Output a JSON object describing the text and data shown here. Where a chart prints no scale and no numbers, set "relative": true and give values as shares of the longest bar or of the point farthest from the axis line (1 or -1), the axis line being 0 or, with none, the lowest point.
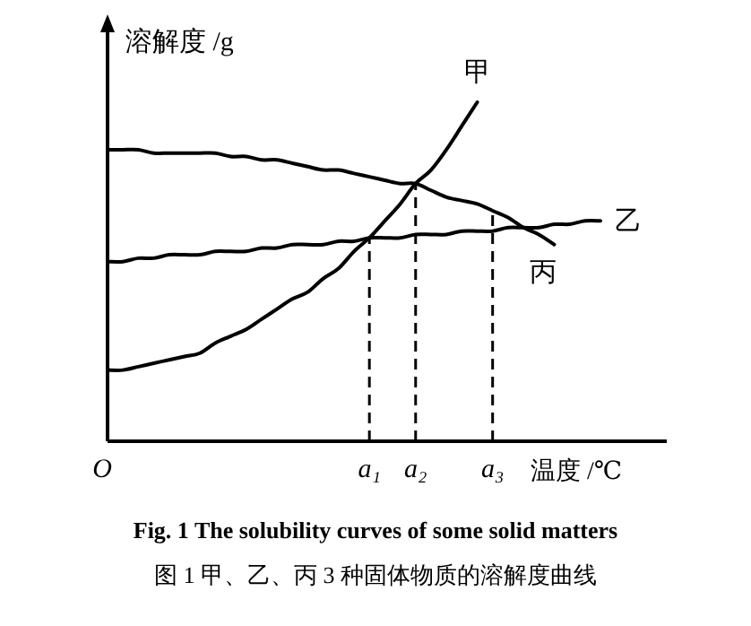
{
  "chart_data": {
    "type": "line",
    "relative": true,
    "title": "Fig. 1   The solubility curves of some solid matters",
    "subtitle": "图 1   甲、乙、丙 3 种固体物质的溶解度曲线",
    "xlabel": "温度 /℃",
    "ylabel": "溶解度 /g",
    "marker": "none",
    "line_style": "solid",
    "categories": [
      "O",
      null,
      null,
      null,
      null,
      null,
      null,
      null,
      null,
      null,
      null,
      null,
      null,
      null,
      null,
      null,
      null,
      "a₁",
      null,
      null,
      "a₂",
      null,
      null,
      null,
      null,
      "a₃",
      null,
      null,
      null,
      null,
      null,
      null,
      null
    ],
    "series": [
      {
        "name": "甲",
        "color": "#000000",
        "values": [
          0.21,
          0.21,
          0.22,
          0.23,
          0.24,
          0.25,
          0.26,
          0.29,
          0.31,
          0.33,
          0.36,
          0.39,
          0.42,
          0.44,
          0.48,
          0.51,
          0.56,
          0.6,
          0.65,
          0.7,
          0.76,
          0.8,
          0.86,
          0.93,
          1.0,
          null,
          null,
          null,
          null,
          null,
          null,
          null,
          null
        ]
      },
      {
        "name": "乙",
        "color": "#000000",
        "values": [
          0.53,
          0.53,
          0.54,
          0.54,
          0.55,
          0.55,
          0.55,
          0.56,
          0.56,
          0.56,
          0.57,
          0.57,
          0.58,
          0.58,
          0.58,
          0.59,
          0.59,
          0.6,
          0.6,
          0.6,
          0.61,
          0.61,
          0.61,
          0.62,
          0.62,
          0.62,
          0.63,
          0.63,
          0.63,
          0.64,
          0.64,
          0.65,
          0.65
        ]
      },
      {
        "name": "丙",
        "color": "#000000",
        "values": [
          0.86,
          0.86,
          0.86,
          0.85,
          0.85,
          0.85,
          0.85,
          0.85,
          0.84,
          0.84,
          0.83,
          0.83,
          0.82,
          0.81,
          0.8,
          0.8,
          0.79,
          0.78,
          0.77,
          0.76,
          0.76,
          0.74,
          0.72,
          0.71,
          0.7,
          0.68,
          0.66,
          0.63,
          0.61,
          0.58,
          null,
          null,
          null
        ]
      },
      {
        "type": "line",
        "line_style": "dashed",
        "color": "#000000",
        "x": [
          "a₁",
          "a₁"
        ],
        "values": [
          0,
          0.6
        ]
      },
      {
        "type": "line",
        "line_style": "dashed",
        "color": "#000000",
        "x": [
          "a₂",
          "a₂"
        ],
        "values": [
          0,
          0.76
        ]
      },
      {
        "type": "line",
        "line_style": "dashed",
        "color": "#000000",
        "x": [
          "a₃",
          "a₃"
        ],
        "values": [
          0,
          0.68
        ]
      }
    ]
  }
}
